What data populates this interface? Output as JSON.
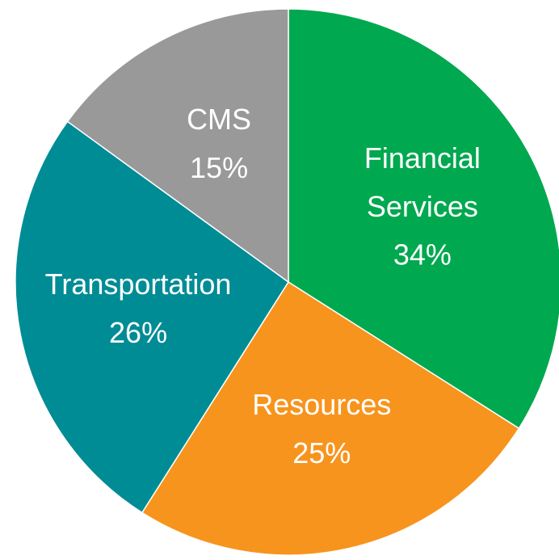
{
  "chart_data": {
    "type": "pie",
    "categories": [
      "Financial Services",
      "Resources",
      "Transportation",
      "CMS"
    ],
    "values": [
      34,
      25,
      26,
      15
    ],
    "value_labels": [
      "34%",
      "25%",
      "26%",
      "15%"
    ],
    "colors": [
      "#00a84f",
      "#f7941d",
      "#008c95",
      "#999999"
    ]
  }
}
